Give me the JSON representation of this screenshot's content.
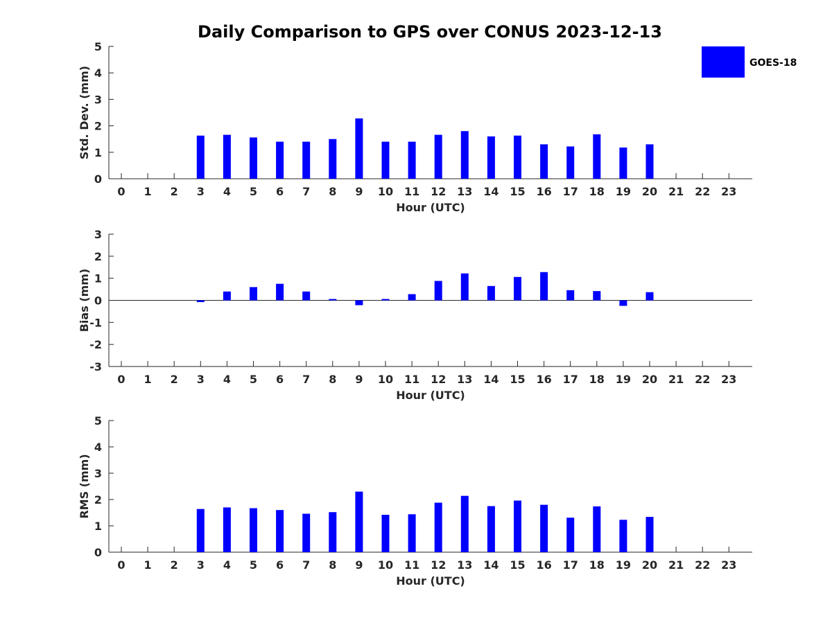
{
  "title": "Daily Comparison to GPS over CONUS 2023-12-13",
  "legend": {
    "label": "GOES-18",
    "color": "#0000FF",
    "placement": "top-right"
  },
  "chart_data": [
    {
      "type": "bar",
      "xlabel": "Hour (UTC)",
      "ylabel": "Std. Dev. (mm)",
      "ylim": [
        0,
        5
      ],
      "yticks": [
        0,
        1,
        2,
        3,
        4,
        5
      ],
      "categories": [
        "0",
        "1",
        "2",
        "3",
        "4",
        "5",
        "6",
        "7",
        "8",
        "9",
        "10",
        "11",
        "12",
        "13",
        "14",
        "15",
        "16",
        "17",
        "18",
        "19",
        "20",
        "21",
        "22",
        "23"
      ],
      "series": [
        {
          "name": "GOES-18",
          "values": [
            null,
            null,
            null,
            1.63,
            1.66,
            1.56,
            1.4,
            1.4,
            1.5,
            2.28,
            1.4,
            1.4,
            1.66,
            1.8,
            1.6,
            1.63,
            1.3,
            1.22,
            1.68,
            1.18,
            1.3,
            null,
            null,
            null
          ]
        }
      ]
    },
    {
      "type": "bar",
      "xlabel": "Hour (UTC)",
      "ylabel": "Bias (mm)",
      "ylim": [
        -3,
        3
      ],
      "yticks": [
        -3,
        -2,
        -1,
        0,
        1,
        2,
        3
      ],
      "categories": [
        "0",
        "1",
        "2",
        "3",
        "4",
        "5",
        "6",
        "7",
        "8",
        "9",
        "10",
        "11",
        "12",
        "13",
        "14",
        "15",
        "16",
        "17",
        "18",
        "19",
        "20",
        "21",
        "22",
        "23"
      ],
      "series": [
        {
          "name": "GOES-18",
          "values": [
            null,
            null,
            null,
            -0.08,
            0.4,
            0.6,
            0.75,
            0.4,
            0.06,
            -0.22,
            0.06,
            0.28,
            0.88,
            1.22,
            0.65,
            1.06,
            1.28,
            0.46,
            0.42,
            -0.25,
            0.37,
            null,
            null,
            null
          ]
        }
      ]
    },
    {
      "type": "bar",
      "xlabel": "Hour (UTC)",
      "ylabel": "RMS (mm)",
      "ylim": [
        0,
        5
      ],
      "yticks": [
        0,
        1,
        2,
        3,
        4,
        5
      ],
      "categories": [
        "0",
        "1",
        "2",
        "3",
        "4",
        "5",
        "6",
        "7",
        "8",
        "9",
        "10",
        "11",
        "12",
        "13",
        "14",
        "15",
        "16",
        "17",
        "18",
        "19",
        "20",
        "21",
        "22",
        "23"
      ],
      "series": [
        {
          "name": "GOES-18",
          "values": [
            null,
            null,
            null,
            1.64,
            1.7,
            1.67,
            1.6,
            1.46,
            1.52,
            2.3,
            1.42,
            1.44,
            1.88,
            2.14,
            1.75,
            1.96,
            1.8,
            1.31,
            1.74,
            1.23,
            1.34,
            null,
            null,
            null
          ]
        }
      ]
    }
  ]
}
